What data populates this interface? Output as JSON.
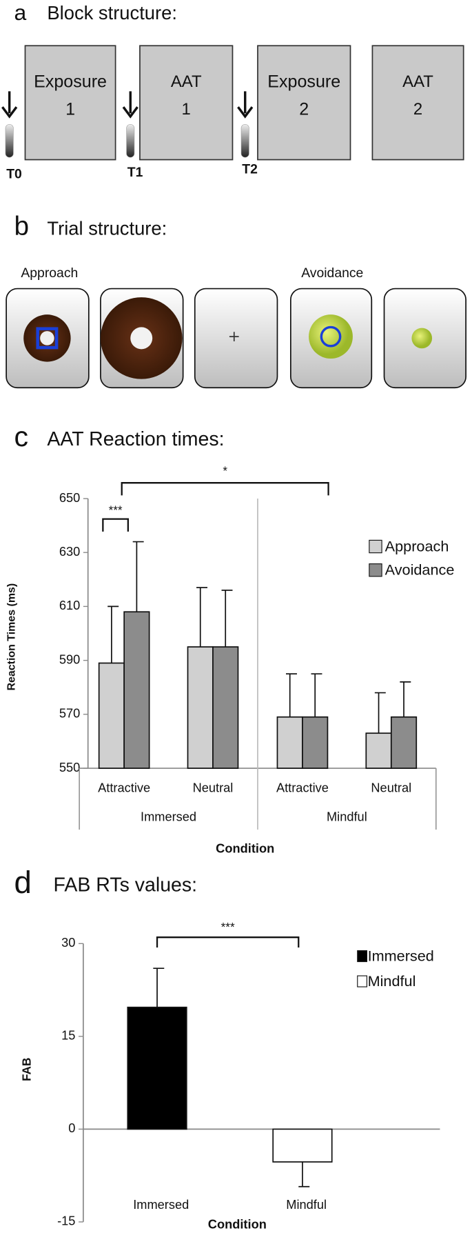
{
  "block_structure": {
    "letter": "a",
    "title": "Block structure:",
    "blocks": [
      {
        "lines": [
          "Exposure",
          "1"
        ]
      },
      {
        "lines": [
          "AAT",
          "1"
        ]
      },
      {
        "lines": [
          "Exposure",
          "2"
        ]
      },
      {
        "lines": [
          "AAT",
          "2"
        ]
      }
    ],
    "timepoints": [
      "T0",
      "T1",
      "T2"
    ]
  },
  "trial_structure": {
    "letter": "b",
    "title": "Trial structure:",
    "labels": [
      "Approach",
      "Avoidance"
    ]
  },
  "chart_data": [
    {
      "type": "grouped-bar",
      "panel_label": "c",
      "title": "AAT Reaction times:",
      "categories": [
        "Attractive",
        "Neutral",
        "Attractive",
        "Neutral"
      ],
      "x_groups": [
        "Immersed",
        "Mindful"
      ],
      "xlabel": "Condition",
      "ylabel": "Reaction Times (ms)",
      "series": [
        {
          "name": "Approach",
          "color": "#d0d0d0",
          "values": [
            589,
            595,
            569,
            563
          ],
          "errors": [
            21,
            22,
            16,
            15
          ]
        },
        {
          "name": "Avoidance",
          "color": "#8c8c8c",
          "values": [
            608,
            595,
            569,
            569
          ],
          "errors": [
            26,
            21,
            16,
            13
          ]
        }
      ],
      "ylim": [
        550,
        650
      ],
      "yticks": [
        550,
        570,
        590,
        610,
        630,
        650
      ],
      "annotations": [
        "***",
        "*"
      ]
    },
    {
      "type": "bar",
      "panel_label": "d",
      "title": "FAB RTs  values:",
      "categories": [
        "Immersed",
        "Mindful"
      ],
      "values": [
        19.7,
        -5.3
      ],
      "errors": [
        6.3,
        4.0
      ],
      "colors": [
        "#000000",
        "#ffffff"
      ],
      "xlabel": "Condition",
      "ylabel": "FAB",
      "ylim": [
        -15,
        30
      ],
      "yticks": [
        -15,
        0,
        15,
        30
      ],
      "annotations": [
        "***"
      ]
    }
  ]
}
